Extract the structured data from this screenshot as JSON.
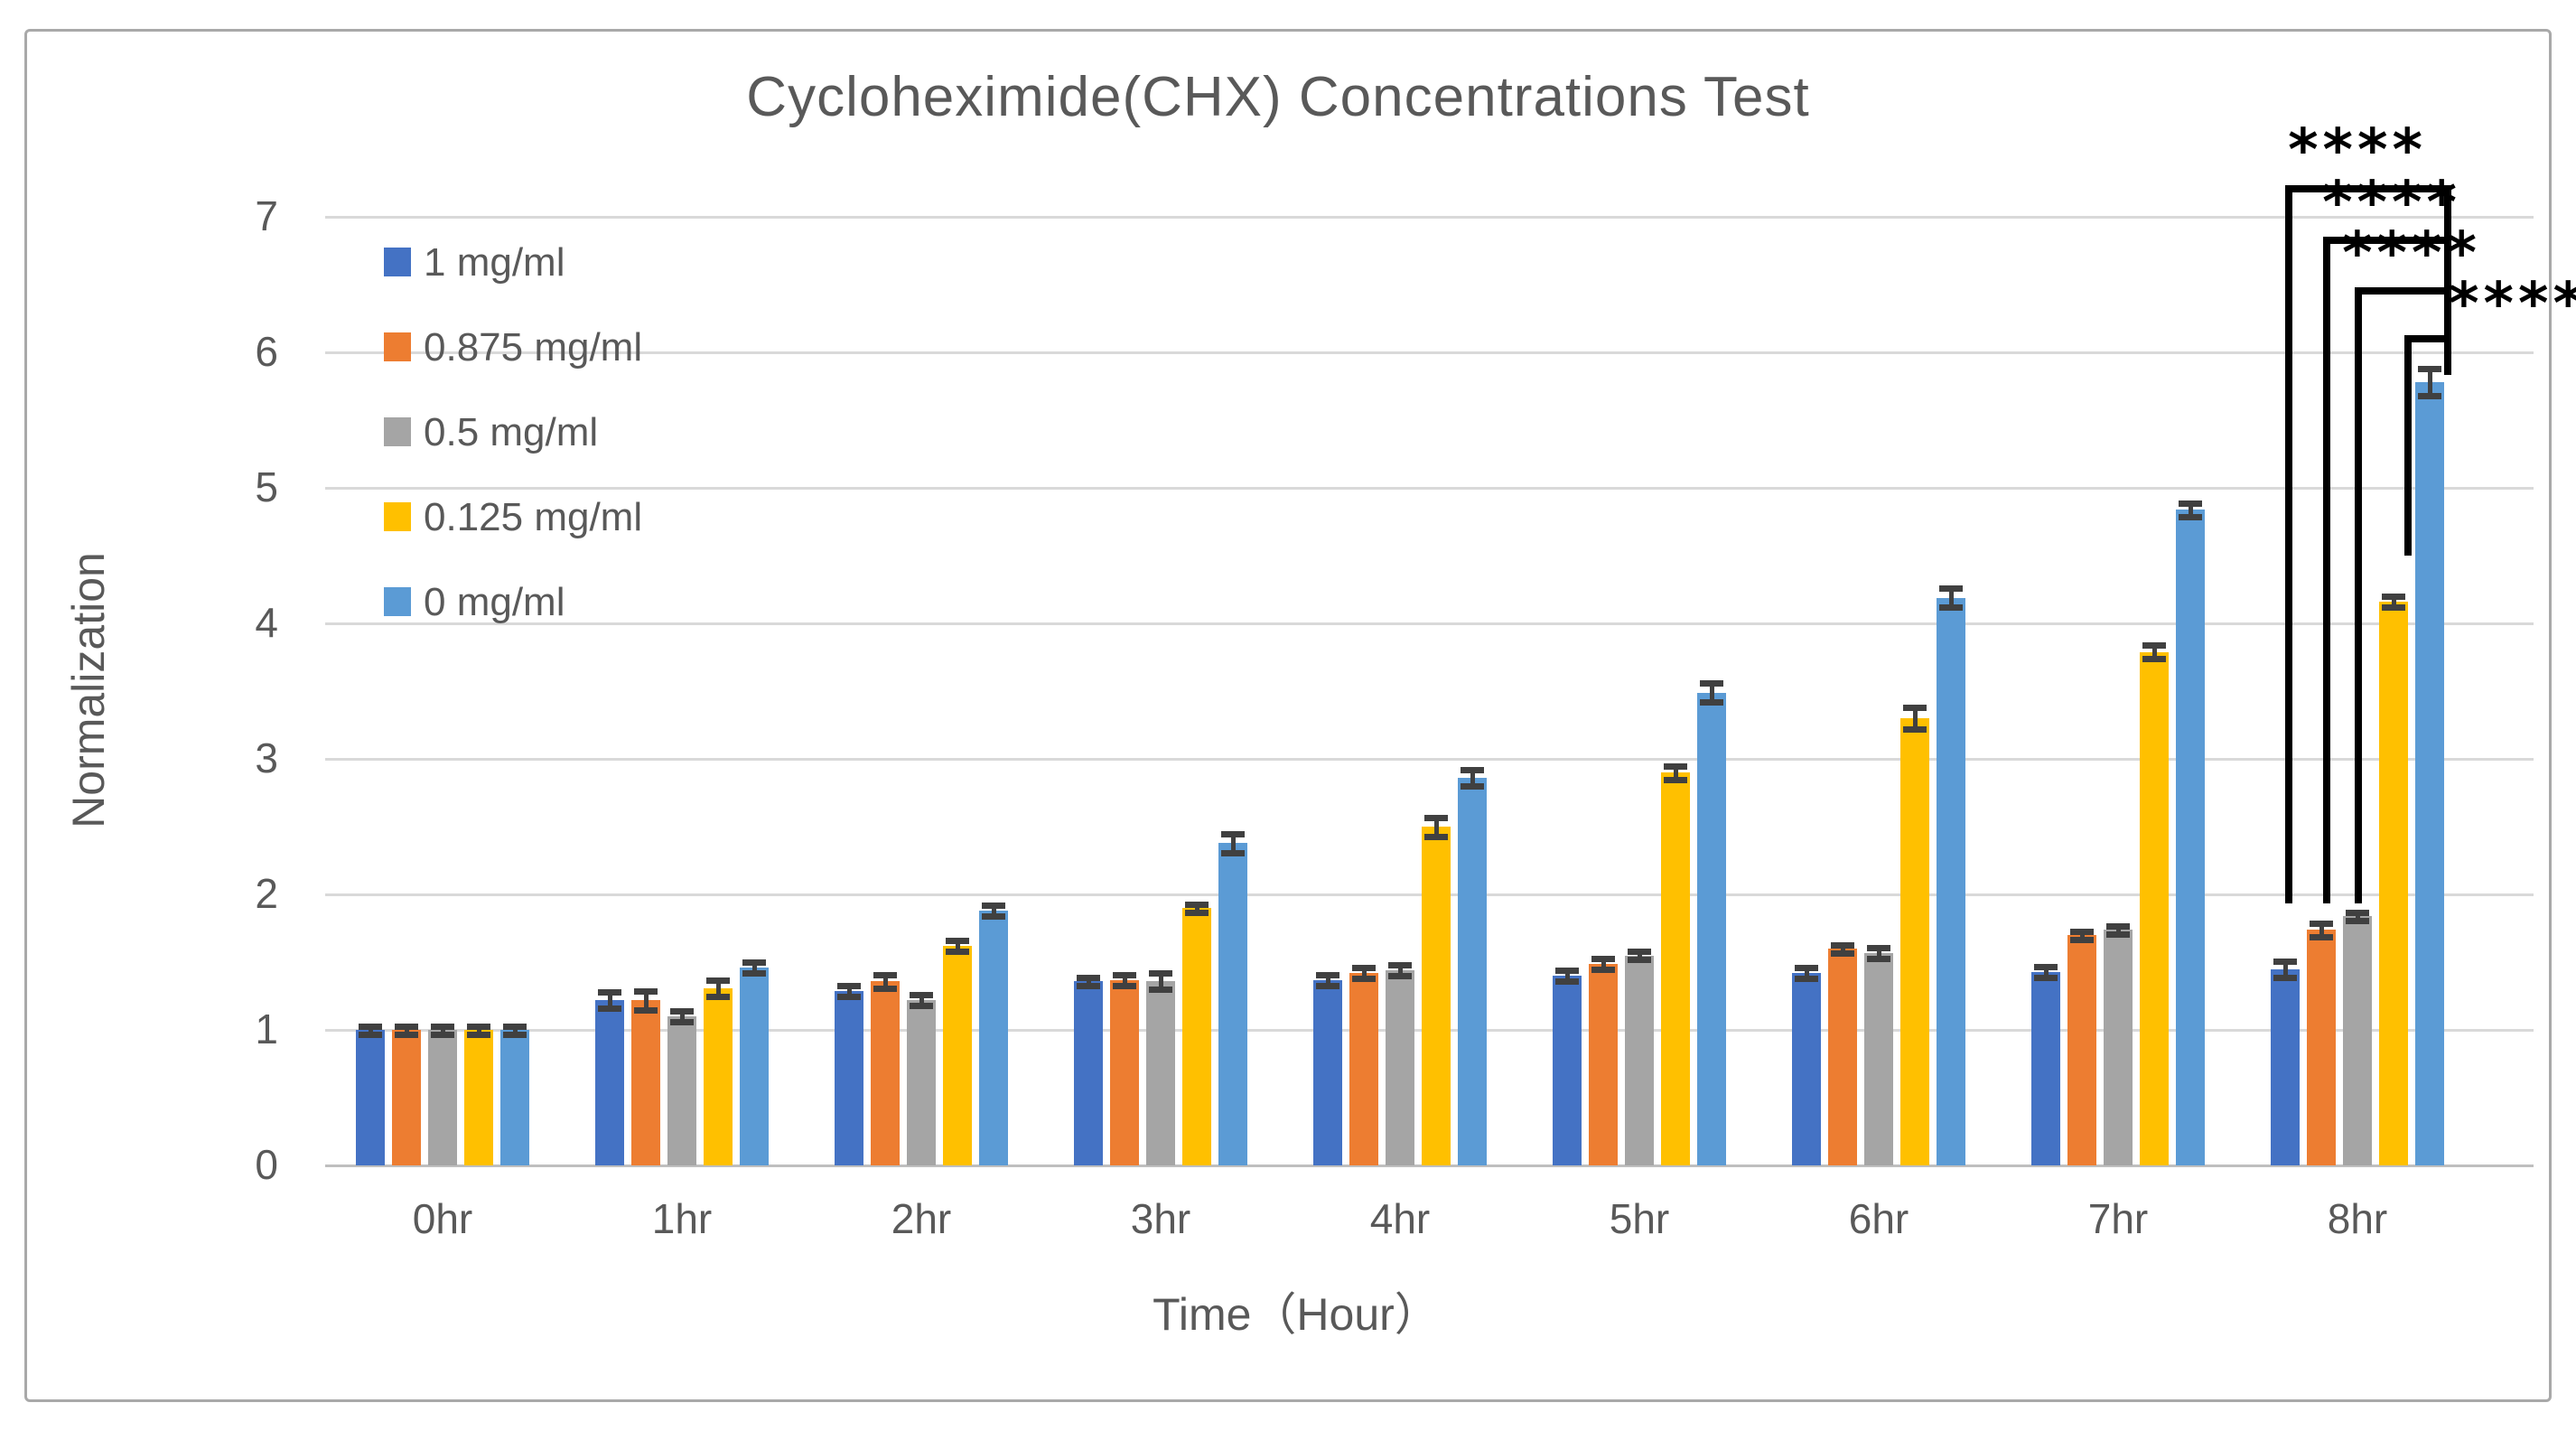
{
  "figure": {
    "title": "Cycloheximide(CHX) Concentrations Test",
    "background": "#FFFFFF",
    "border_color": "#A9A9A9"
  },
  "chart_data": {
    "type": "bar",
    "title": "Cycloheximide(CHX) Concentrations Test",
    "xlabel": "Time（Hour）",
    "ylabel": "Normalization",
    "ylim": [
      0,
      7
    ],
    "yticks": [
      "0",
      "1",
      "2",
      "3",
      "4",
      "5",
      "6",
      "7"
    ],
    "grid": true,
    "legend_position": "upper-left-inside",
    "categories": [
      "0hr",
      "1hr",
      "2hr",
      "3hr",
      "4hr",
      "5hr",
      "6hr",
      "7hr",
      "8hr"
    ],
    "series": [
      {
        "name": "1 mg/ml",
        "color": "#4472C4",
        "values": [
          1.0,
          1.22,
          1.29,
          1.36,
          1.37,
          1.4,
          1.42,
          1.43,
          1.45
        ],
        "errors": [
          0.03,
          0.06,
          0.04,
          0.03,
          0.04,
          0.04,
          0.04,
          0.04,
          0.06
        ]
      },
      {
        "name": "0.875 mg/ml",
        "color": "#ED7D31",
        "values": [
          1.0,
          1.22,
          1.36,
          1.37,
          1.42,
          1.49,
          1.6,
          1.7,
          1.74
        ],
        "errors": [
          0.03,
          0.07,
          0.05,
          0.04,
          0.04,
          0.04,
          0.03,
          0.03,
          0.05
        ]
      },
      {
        "name": "0.5 mg/ml",
        "color": "#A5A5A5",
        "values": [
          1.0,
          1.1,
          1.22,
          1.36,
          1.44,
          1.55,
          1.57,
          1.74,
          1.84
        ],
        "errors": [
          0.03,
          0.04,
          0.04,
          0.06,
          0.04,
          0.03,
          0.04,
          0.03,
          0.03
        ]
      },
      {
        "name": "0.125 mg/ml",
        "color": "#FFC000",
        "values": [
          1.0,
          1.31,
          1.62,
          1.9,
          2.5,
          2.9,
          3.3,
          3.79,
          4.16
        ],
        "errors": [
          0.03,
          0.06,
          0.04,
          0.03,
          0.07,
          0.05,
          0.08,
          0.05,
          0.04
        ]
      },
      {
        "name": "0 mg/ml",
        "color": "#5B9BD5",
        "values": [
          1.0,
          1.46,
          1.88,
          2.38,
          2.86,
          3.49,
          4.19,
          4.84,
          5.78
        ],
        "errors": [
          0.03,
          0.04,
          0.04,
          0.07,
          0.06,
          0.07,
          0.07,
          0.05,
          0.1
        ]
      }
    ],
    "annotations": {
      "significance_labels": [
        "****",
        "****",
        "****",
        "****"
      ],
      "bracket_color": "#000000"
    }
  },
  "colors": {
    "gridline": "#D9D9D9",
    "axis_line": "#BFBFBF",
    "text": "#595959",
    "error_bar": "#404040"
  }
}
